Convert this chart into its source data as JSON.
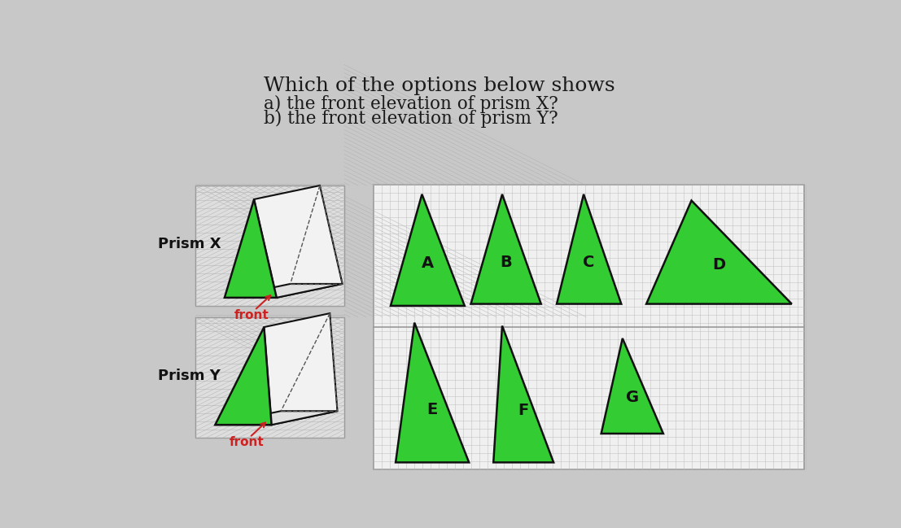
{
  "bg_color": "#c8c8c8",
  "green_color": "#33cc33",
  "green_edge": "#111111",
  "iso_grid_color": "#aaaaaa",
  "rect_grid_color": "#bbbbbb",
  "box_bg": "#dedede",
  "opt_bg": "#f0f0f0",
  "title1": "Which of the options below shows",
  "title2a": "a) the front elevation of prism X?",
  "title2b": "b) the front elevation of prism Y?",
  "label_PX": "Prism X",
  "label_PY": "Prism Y",
  "label_front": "front",
  "front_color": "#cc2222"
}
